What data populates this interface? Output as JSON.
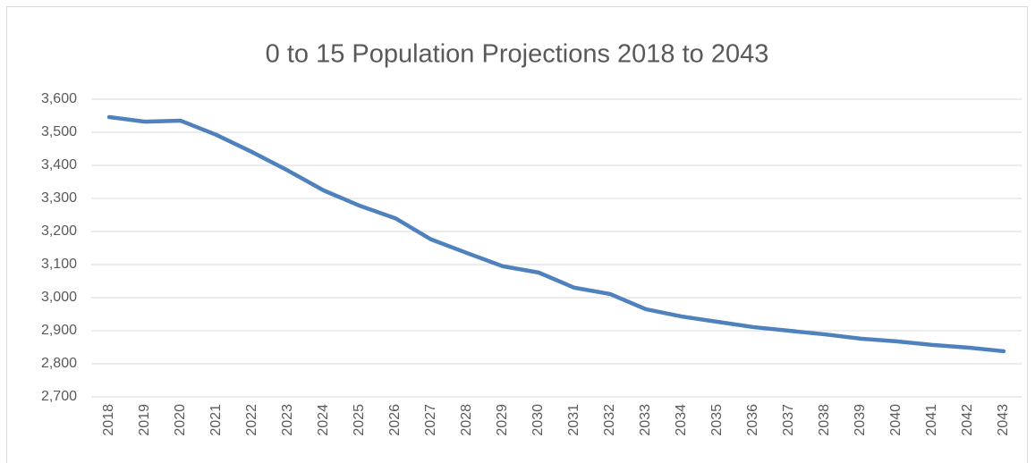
{
  "chart_data": {
    "type": "line",
    "title": "0 to 15 Population Projections 2018 to 2043",
    "categories": [
      "2018",
      "2019",
      "2020",
      "2021",
      "2022",
      "2023",
      "2024",
      "2025",
      "2026",
      "2027",
      "2028",
      "2029",
      "2030",
      "2031",
      "2032",
      "2033",
      "2034",
      "2035",
      "2036",
      "2037",
      "2038",
      "2039",
      "2040",
      "2041",
      "2042",
      "2043"
    ],
    "values": [
      3546,
      3532,
      3535,
      3492,
      3440,
      3384,
      3324,
      3278,
      3240,
      3176,
      3135,
      3095,
      3076,
      3030,
      3011,
      2965,
      2943,
      2927,
      2911,
      2900,
      2889,
      2876,
      2868,
      2857,
      2849,
      2838
    ],
    "color": "#4f81bd",
    "ylim": [
      2700,
      3600
    ],
    "yticks": [
      {
        "value": 2700,
        "label": "2,700"
      },
      {
        "value": 2800,
        "label": "2,800"
      },
      {
        "value": 2900,
        "label": "2,900"
      },
      {
        "value": 3000,
        "label": "3,000"
      },
      {
        "value": 3100,
        "label": "3,100"
      },
      {
        "value": 3200,
        "label": "3,200"
      },
      {
        "value": 3300,
        "label": "3,300"
      },
      {
        "value": 3400,
        "label": "3,400"
      },
      {
        "value": 3500,
        "label": "3,500"
      },
      {
        "value": 3600,
        "label": "3,600"
      }
    ],
    "grid": true
  }
}
